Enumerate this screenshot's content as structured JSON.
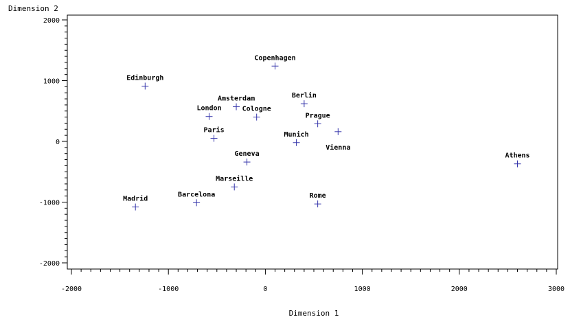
{
  "chart_data": {
    "type": "scatter",
    "xlabel": "Dimension 1",
    "ylabel": "Dimension 2",
    "xlim": [
      -2000,
      3000
    ],
    "ylim": [
      -2000,
      2000
    ],
    "xticks": [
      -2000,
      -1000,
      0,
      1000,
      2000,
      3000
    ],
    "yticks": [
      -2000,
      -1000,
      0,
      1000,
      2000
    ],
    "xtick_labels": [
      "-2000",
      "-1000",
      "0",
      "1000",
      "2000",
      "3000"
    ],
    "ytick_labels": [
      "-2000",
      "-1000",
      "0",
      "1000",
      "2000"
    ],
    "marker_color": "#3333aa",
    "points": [
      {
        "label": "Copenhagen",
        "x": 100,
        "y": 1240
      },
      {
        "label": "Edinburgh",
        "x": -1240,
        "y": 910
      },
      {
        "label": "Amsterdam",
        "x": -300,
        "y": 570
      },
      {
        "label": "Berlin",
        "x": 400,
        "y": 620
      },
      {
        "label": "London",
        "x": -580,
        "y": 410
      },
      {
        "label": "Cologne",
        "x": -90,
        "y": 400
      },
      {
        "label": "Prague",
        "x": 540,
        "y": 290
      },
      {
        "label": "Paris",
        "x": -530,
        "y": 50
      },
      {
        "label": "Munich",
        "x": 320,
        "y": -20
      },
      {
        "label": "Vienna",
        "x": 750,
        "y": 160
      },
      {
        "label": "Geneva",
        "x": -190,
        "y": -340
      },
      {
        "label": "Athens",
        "x": 2600,
        "y": -370
      },
      {
        "label": "Marseille",
        "x": -320,
        "y": -750
      },
      {
        "label": "Barcelona",
        "x": -710,
        "y": -1010
      },
      {
        "label": "Madrid",
        "x": -1340,
        "y": -1080
      },
      {
        "label": "Rome",
        "x": 540,
        "y": -1030
      }
    ]
  }
}
